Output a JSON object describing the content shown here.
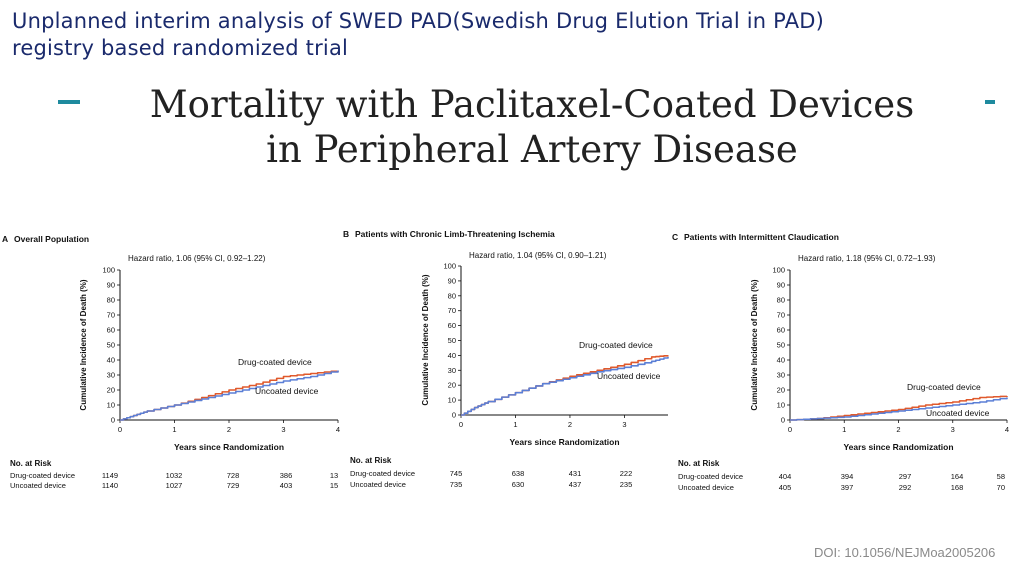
{
  "slide": {
    "subtitle_line1": "Unplanned interim analysis of SWED PAD(Swedish Drug Elution Trial in PAD)",
    "subtitle_line2": "registry based randomized trial",
    "title_line1": "Mortality with Paclitaxel-Coated Devices",
    "title_line2": "in Peripheral Artery Disease",
    "doi": "DOI: 10.1056/NEJMoa2005206",
    "accent_color": "#1e8a9e",
    "subtitle_color": "#1a2a6c"
  },
  "chart_data": [
    {
      "type": "line",
      "panel_label": "A",
      "title": "Overall Population",
      "xlabel": "Years since Randomization",
      "ylabel": "Cumulative Incidence of Death (%)",
      "xlim": [
        0,
        4
      ],
      "ylim": [
        0,
        100
      ],
      "xticks": [
        0,
        1,
        2,
        3,
        4
      ],
      "yticks": [
        0,
        10,
        20,
        30,
        40,
        50,
        60,
        70,
        80,
        90,
        100
      ],
      "annotation": "Hazard ratio, 1.06 (95% CI, 0.92–1.22)",
      "series": [
        {
          "name": "Drug-coated device",
          "color": "#e0592b",
          "x": [
            0,
            0.25,
            0.5,
            1,
            1.5,
            2,
            2.5,
            3,
            3.5,
            4
          ],
          "y": [
            0,
            3,
            6,
            10,
            15,
            20,
            24,
            29,
            31,
            33
          ]
        },
        {
          "name": "Uncoated device",
          "color": "#5b7fd6",
          "x": [
            0,
            0.25,
            0.5,
            1,
            1.5,
            2,
            2.5,
            3,
            3.5,
            4
          ],
          "y": [
            0,
            3,
            6,
            10,
            14,
            18,
            22,
            26,
            29,
            33
          ]
        }
      ],
      "at_risk": {
        "heading": "No. at Risk",
        "rows": [
          {
            "label": "Drug-coated device",
            "values": [
              "1149",
              "1032",
              "728",
              "386",
              "13"
            ]
          },
          {
            "label": "Uncoated device",
            "values": [
              "1140",
              "1027",
              "729",
              "403",
              "15"
            ]
          }
        ]
      }
    },
    {
      "type": "line",
      "panel_label": "B",
      "title": "Patients with Chronic Limb-Threatening Ischemia",
      "xlabel": "Years since Randomization",
      "ylabel": "Cumulative Incidence of Death (%)",
      "xlim": [
        0,
        3.8
      ],
      "ylim": [
        0,
        100
      ],
      "xticks": [
        0,
        1,
        2,
        3
      ],
      "yticks": [
        0,
        10,
        20,
        30,
        40,
        50,
        60,
        70,
        80,
        90,
        100
      ],
      "annotation": "Hazard ratio, 1.04 (95% CI, 0.90–1.21)",
      "series": [
        {
          "name": "Drug-coated device",
          "color": "#e0592b",
          "x": [
            0,
            0.25,
            0.5,
            1,
            1.5,
            2,
            2.5,
            3,
            3.5,
            3.8
          ],
          "y": [
            0,
            5,
            9,
            15,
            21,
            26,
            30,
            34,
            39,
            40
          ]
        },
        {
          "name": "Uncoated device",
          "color": "#5b7fd6",
          "x": [
            0,
            0.25,
            0.5,
            1,
            1.5,
            2,
            2.5,
            3,
            3.5,
            3.8
          ],
          "y": [
            0,
            5,
            9,
            15,
            21,
            25,
            29,
            32,
            36,
            39
          ]
        }
      ],
      "at_risk": {
        "heading": "No. at Risk",
        "rows": [
          {
            "label": "Drug-coated device",
            "values": [
              "745",
              "638",
              "431",
              "222"
            ]
          },
          {
            "label": "Uncoated device",
            "values": [
              "735",
              "630",
              "437",
              "235"
            ]
          }
        ]
      }
    },
    {
      "type": "line",
      "panel_label": "C",
      "title": "Patients with Intermittent Claudication",
      "xlabel": "Years since Randomization",
      "ylabel": "Cumulative Incidence of Death (%)",
      "xlim": [
        0,
        4
      ],
      "ylim": [
        0,
        100
      ],
      "xticks": [
        0,
        1,
        2,
        3,
        4
      ],
      "yticks": [
        0,
        10,
        20,
        30,
        40,
        50,
        60,
        70,
        80,
        90,
        100
      ],
      "annotation": "Hazard ratio, 1.18 (95% CI, 0.72–1.93)",
      "series": [
        {
          "name": "Drug-coated device",
          "color": "#e0592b",
          "x": [
            0,
            0.5,
            1,
            1.5,
            2,
            2.5,
            3,
            3.5,
            4
          ],
          "y": [
            0,
            1,
            3,
            5,
            7,
            10,
            12,
            15,
            16
          ]
        },
        {
          "name": "Uncoated device",
          "color": "#5b7fd6",
          "x": [
            0,
            0.5,
            1,
            1.5,
            2,
            2.5,
            3,
            3.5,
            4
          ],
          "y": [
            0,
            1,
            2,
            4,
            6,
            8,
            10,
            12,
            15
          ]
        }
      ],
      "at_risk": {
        "heading": "No. at Risk",
        "rows": [
          {
            "label": "Drug-coated device",
            "values": [
              "404",
              "394",
              "297",
              "164",
              "58"
            ]
          },
          {
            "label": "Uncoated device",
            "values": [
              "405",
              "397",
              "292",
              "168",
              "70"
            ]
          }
        ]
      }
    }
  ]
}
